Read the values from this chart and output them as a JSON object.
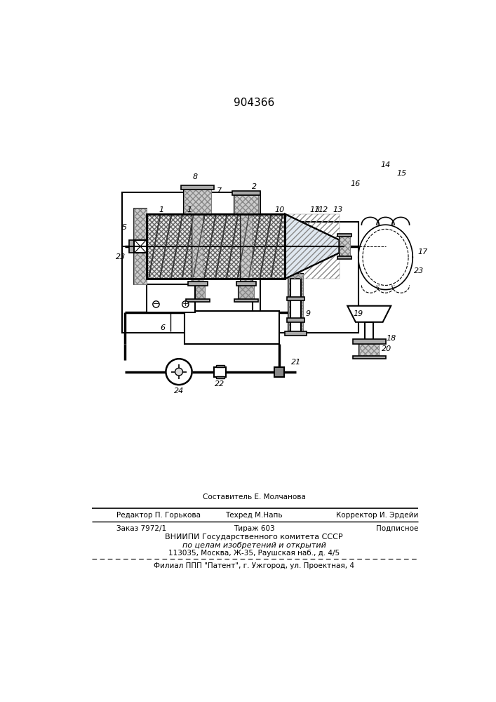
{
  "patent_number": "904366",
  "bg": "#ffffff",
  "footer": {
    "comp": "Составитель Е. Молчанова",
    "ed": "Редактор П. Горькова",
    "tech": "Техред М.Напь",
    "corr": "Корректор И. Эрдейи",
    "order": "Заказ 7972/1",
    "circ": "Тираж 603",
    "sub": "Подписное",
    "inst1": "ВНИИПИ Государственного комитета СССР",
    "inst2": "по целам изобретений и открытий",
    "inst3": "113035, Москва, Ж-35, Раушская наб., д. 4/5",
    "branch": "Филиал ППП \"Патент\", г. Ужгород, ул. Проектная, 4"
  }
}
